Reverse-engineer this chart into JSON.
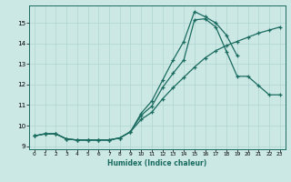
{
  "xlabel": "Humidex (Indice chaleur)",
  "bg_color": "#cce8e4",
  "grid_color": "#b0d4d0",
  "line_color": "#1a6b60",
  "xlim": [
    -0.5,
    23.5
  ],
  "ylim": [
    8.85,
    15.85
  ],
  "xticks": [
    0,
    1,
    2,
    3,
    4,
    5,
    6,
    7,
    8,
    9,
    10,
    11,
    12,
    13,
    14,
    15,
    16,
    17,
    18,
    19,
    20,
    21,
    22,
    23
  ],
  "yticks": [
    9,
    10,
    11,
    12,
    13,
    14,
    15
  ],
  "series": [
    {
      "x": [
        0,
        1,
        2,
        3,
        4,
        5,
        6,
        7,
        8,
        9,
        10,
        11,
        12,
        13,
        14,
        15,
        16,
        17,
        18,
        19
      ],
      "y": [
        9.5,
        9.6,
        9.6,
        9.35,
        9.3,
        9.3,
        9.3,
        9.3,
        9.4,
        9.7,
        10.6,
        11.2,
        12.2,
        13.2,
        14.1,
        15.55,
        15.3,
        15.0,
        14.4,
        13.4
      ]
    },
    {
      "x": [
        0,
        1,
        2,
        3,
        4,
        5,
        6,
        7,
        8,
        9,
        10,
        11,
        12,
        13,
        14,
        15,
        16,
        17,
        18,
        19,
        20,
        21,
        22,
        23
      ],
      "y": [
        9.5,
        9.6,
        9.6,
        9.35,
        9.3,
        9.3,
        9.3,
        9.3,
        9.4,
        9.7,
        10.5,
        10.95,
        11.85,
        12.55,
        13.2,
        15.15,
        15.2,
        14.8,
        13.6,
        12.4,
        12.4,
        11.95,
        11.5,
        11.5
      ]
    },
    {
      "x": [
        0,
        1,
        2,
        3,
        4,
        5,
        6,
        7,
        8,
        9,
        10,
        11,
        12,
        13,
        14,
        15,
        16,
        17,
        18,
        19,
        20,
        21,
        22,
        23
      ],
      "y": [
        9.5,
        9.6,
        9.6,
        9.35,
        9.3,
        9.3,
        9.3,
        9.3,
        9.4,
        9.7,
        10.3,
        10.65,
        11.3,
        11.85,
        12.35,
        12.85,
        13.3,
        13.65,
        13.9,
        14.1,
        14.3,
        14.5,
        14.65,
        14.8
      ]
    }
  ]
}
